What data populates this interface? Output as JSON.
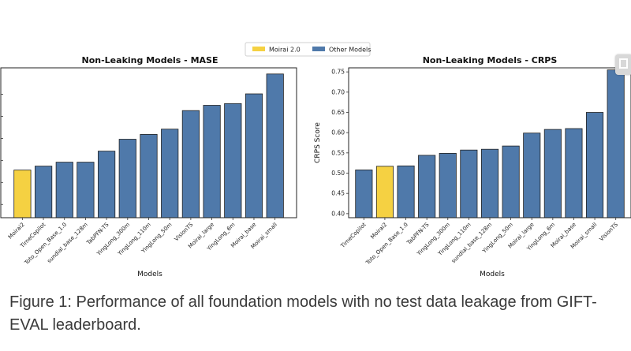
{
  "legend": {
    "items": [
      {
        "label": "Moirai 2.0",
        "color": "#f5d142"
      },
      {
        "label": "Other Models",
        "color": "#4f79aa"
      }
    ]
  },
  "caption": "Figure 1: Performance of all foundation models with no test data leakage from GIFT-EVAL leaderboard.",
  "chart_data": [
    {
      "type": "bar",
      "title": "Non-Leaking Models - MASE",
      "xlabel": "Models",
      "ylabel": "",
      "categories": [
        "Moirai2",
        "TimeCopilot",
        "Toto_Open_Base_1.0",
        "sundial_base_128m",
        "TabPFN-TS",
        "YingLong_300m",
        "YingLong_110m",
        "YingLong_50m",
        "VisionTS",
        "Moirai_large",
        "YingLong_6m",
        "Moirai_base",
        "Moirai_small"
      ],
      "values": [
        0.728,
        0.737,
        0.746,
        0.746,
        0.771,
        0.798,
        0.809,
        0.821,
        0.863,
        0.875,
        0.879,
        0.901,
        0.946
      ],
      "highlight": "Moirai2",
      "ylim": [
        0.62,
        0.96
      ],
      "grid": false
    },
    {
      "type": "bar",
      "title": "Non-Leaking Models - CRPS",
      "xlabel": "Models",
      "ylabel": "CRPS Score",
      "categories": [
        "TimeCopilot",
        "Moirai2",
        "Toto_Open_Base_1.0",
        "TabPFN-TS",
        "YingLong_300m",
        "YingLong_110m",
        "sundial_base_128m",
        "YingLong_50m",
        "Moirai_large",
        "YingLong_6m",
        "Moirai_base",
        "Moirai_small",
        "VisionTS"
      ],
      "values": [
        0.508,
        0.517,
        0.518,
        0.544,
        0.549,
        0.557,
        0.559,
        0.567,
        0.599,
        0.608,
        0.61,
        0.65,
        0.755
      ],
      "highlight": "Moirai2",
      "ylim": [
        0.39,
        0.76
      ],
      "yticks": [
        0.4,
        0.45,
        0.5,
        0.55,
        0.6,
        0.65,
        0.7,
        0.75
      ],
      "grid": false
    }
  ]
}
